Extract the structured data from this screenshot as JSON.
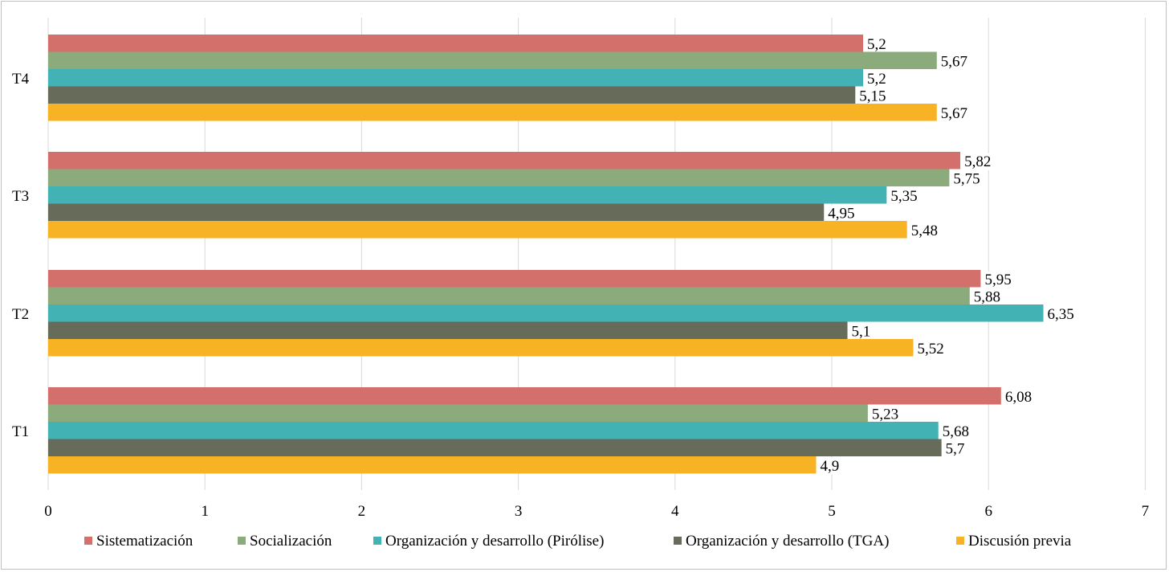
{
  "chart_data": {
    "type": "bar",
    "orientation": "horizontal",
    "categories": [
      "T1",
      "T2",
      "T3",
      "T4"
    ],
    "series": [
      {
        "name": "Sistematización",
        "color": "#d4706b",
        "values": [
          6.08,
          5.95,
          5.82,
          5.2
        ],
        "labels": [
          "6,08",
          "5,95",
          "5,82",
          "5,2"
        ]
      },
      {
        "name": "Socialización",
        "color": "#8cab7c",
        "values": [
          5.23,
          5.88,
          5.75,
          5.67
        ],
        "labels": [
          "5,23",
          "5,88",
          "5,75",
          "5,67"
        ]
      },
      {
        "name": "Organización y desarrollo (Pirólise)",
        "color": "#43b2b5",
        "values": [
          5.68,
          6.35,
          5.35,
          5.2
        ],
        "labels": [
          "5,68",
          "6,35",
          "5,35",
          "5,2"
        ]
      },
      {
        "name": "Organización y desarrollo (TGA)",
        "color": "#676b5a",
        "values": [
          5.7,
          5.1,
          4.95,
          5.15
        ],
        "labels": [
          "5,7",
          "5,1",
          "4,95",
          "5,15"
        ]
      },
      {
        "name": "Discusión previa",
        "color": "#f8b324",
        "values": [
          4.9,
          5.52,
          5.48,
          5.67
        ],
        "labels": [
          "4,9",
          "5,52",
          "5,48",
          "5,67"
        ]
      }
    ],
    "xlim": [
      0,
      7
    ],
    "xticks": [
      "0",
      "1",
      "2",
      "3",
      "4",
      "5",
      "6",
      "7"
    ],
    "grid": "vertical",
    "legend_position": "bottom",
    "title": "",
    "xlabel": "",
    "ylabel": ""
  }
}
